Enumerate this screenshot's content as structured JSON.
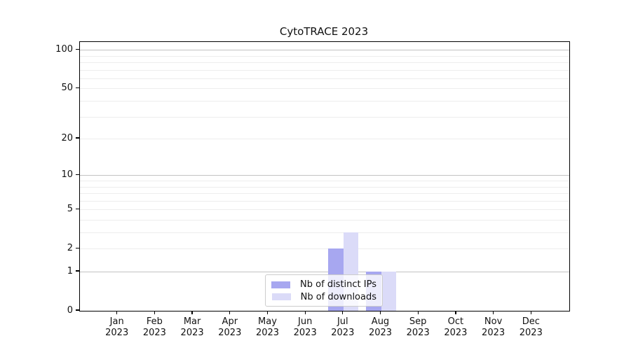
{
  "title": "CytoTRACE 2023",
  "chart_data": {
    "type": "bar",
    "title": "CytoTRACE 2023",
    "categories": [
      "Jan",
      "Feb",
      "Mar",
      "Apr",
      "May",
      "Jun",
      "Jul",
      "Aug",
      "Sep",
      "Oct",
      "Nov",
      "Dec"
    ],
    "year": "2023",
    "series": [
      {
        "name": "Nb of distinct IPs",
        "color": "#a7a7f0",
        "values": [
          0,
          0,
          0,
          0,
          0,
          0,
          2,
          1,
          0,
          0,
          0,
          0
        ]
      },
      {
        "name": "Nb of downloads",
        "color": "#dbdbf8",
        "values": [
          0,
          0,
          0,
          0,
          0,
          0,
          3,
          1,
          0,
          0,
          0,
          0
        ]
      }
    ],
    "y_scale": "log1p",
    "y_ticks": [
      0,
      1,
      2,
      5,
      10,
      20,
      50,
      100
    ],
    "y_major_grid": [
      1,
      10,
      100
    ],
    "y_minor_grid": [
      2,
      3,
      4,
      5,
      6,
      7,
      8,
      9,
      20,
      30,
      40,
      50,
      60,
      70,
      80,
      90
    ],
    "ylim": [
      0,
      115
    ],
    "legend_position": "lower center",
    "colors": {
      "grid_major": "#c2c2c2",
      "grid_minor": "#ededed",
      "axis": "#000000",
      "text": "#111111"
    }
  }
}
